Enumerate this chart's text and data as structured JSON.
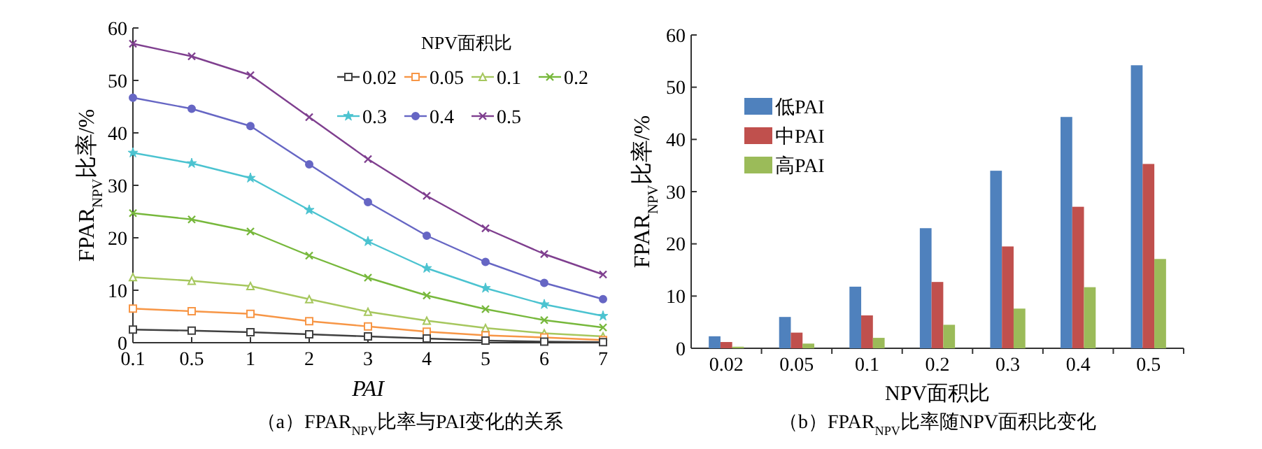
{
  "chart_data": [
    {
      "type": "line",
      "title": "（a）FPAR$_{NPV}$比率与PAI变化的关系",
      "xlabel": "PAI",
      "ylabel": "FPAR$_{NPV}$比率/%",
      "legend_title": "NPV面积比",
      "legend": "top right",
      "categories": [
        "0.1",
        "0.5",
        "1",
        "2",
        "3",
        "4",
        "5",
        "6",
        "7"
      ],
      "ylim": [
        0,
        60
      ],
      "yticks": [
        0,
        10,
        20,
        30,
        40,
        50,
        60
      ],
      "series": [
        {
          "name": "0.02",
          "color": "#404040",
          "marker": "square",
          "values": [
            2.5,
            2.3,
            2.0,
            1.6,
            1.2,
            0.8,
            0.4,
            0.2,
            0.1
          ]
        },
        {
          "name": "0.05",
          "color": "#f79646",
          "marker": "square",
          "values": [
            6.5,
            6.0,
            5.5,
            4.1,
            3.1,
            2.1,
            1.4,
            1.0,
            0.5
          ]
        },
        {
          "name": "0.1",
          "color": "#a6c75e",
          "marker": "triangle",
          "values": [
            12.5,
            11.8,
            10.8,
            8.3,
            5.9,
            4.2,
            2.8,
            1.8,
            1.2
          ]
        },
        {
          "name": "0.2",
          "color": "#77b83c",
          "marker": "cross",
          "values": [
            24.7,
            23.5,
            21.2,
            16.6,
            12.4,
            9.0,
            6.4,
            4.3,
            2.9
          ]
        },
        {
          "name": "0.3",
          "color": "#4bc3d0",
          "marker": "star",
          "values": [
            36.2,
            34.2,
            31.4,
            25.3,
            19.3,
            14.2,
            10.4,
            7.3,
            5.1
          ]
        },
        {
          "name": "0.4",
          "color": "#6666c4",
          "marker": "circle",
          "values": [
            46.7,
            44.6,
            41.3,
            34.0,
            26.8,
            20.4,
            15.4,
            11.4,
            8.3
          ]
        },
        {
          "name": "0.5",
          "color": "#7f3f8f",
          "marker": "cross",
          "values": [
            57.0,
            54.6,
            51.0,
            43.0,
            35.0,
            28.0,
            21.8,
            16.9,
            13.0
          ]
        }
      ]
    },
    {
      "type": "bar",
      "title": "（b）FPAR$_{NPV}$比率随NPV面积比变化",
      "xlabel": "NPV面积比",
      "ylabel": "FPAR$_{NPV}$比率/%",
      "legend": "top left",
      "categories": [
        "0.02",
        "0.05",
        "0.1",
        "0.2",
        "0.3",
        "0.4",
        "0.5"
      ],
      "ylim": [
        0,
        60
      ],
      "yticks": [
        0,
        10,
        20,
        30,
        40,
        50,
        60
      ],
      "series": [
        {
          "name": "低PAI",
          "color": "#4f81bd",
          "values": [
            2.3,
            6.0,
            11.8,
            23.0,
            34.0,
            44.3,
            54.2
          ]
        },
        {
          "name": "中PAI",
          "color": "#c0504d",
          "values": [
            1.2,
            3.0,
            6.3,
            12.7,
            19.5,
            27.1,
            35.3
          ]
        },
        {
          "name": "高PAI",
          "color": "#9bbb59",
          "values": [
            0.3,
            0.9,
            2.0,
            4.5,
            7.6,
            11.7,
            17.1
          ]
        }
      ]
    }
  ]
}
